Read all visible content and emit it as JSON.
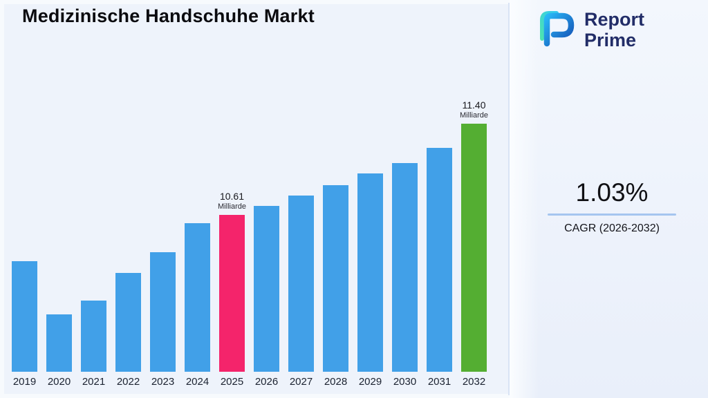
{
  "title": "Medizinische Handschuhe Markt",
  "logo": {
    "word1": "Report",
    "word2": "Prime"
  },
  "stats": {
    "cagr_value": "1.03%",
    "cagr_label": "CAGR (2026-2032)"
  },
  "chart_data": {
    "type": "bar",
    "title": "Medizinische Handschuhe Markt",
    "xlabel": "",
    "ylabel": "Milliarde",
    "categories": [
      "2019",
      "2020",
      "2021",
      "2022",
      "2023",
      "2024",
      "2025",
      "2026",
      "2027",
      "2028",
      "2029",
      "2030",
      "2031",
      "2032"
    ],
    "values": [
      10.21,
      9.75,
      9.87,
      10.11,
      10.29,
      10.54,
      10.61,
      10.69,
      10.78,
      10.87,
      10.97,
      11.06,
      11.19,
      11.4
    ],
    "ylim": [
      9.25,
      11.6
    ],
    "grid": false,
    "legend": false,
    "bar_colors": {
      "default": "#41a0e8",
      "2025": "#f4246b",
      "2032": "#54ae32"
    },
    "annotations": [
      {
        "category": "2025",
        "value_label": "10.61",
        "unit_label": "Milliarde"
      },
      {
        "category": "2032",
        "value_label": "11.40",
        "unit_label": "Milliarde"
      }
    ]
  }
}
